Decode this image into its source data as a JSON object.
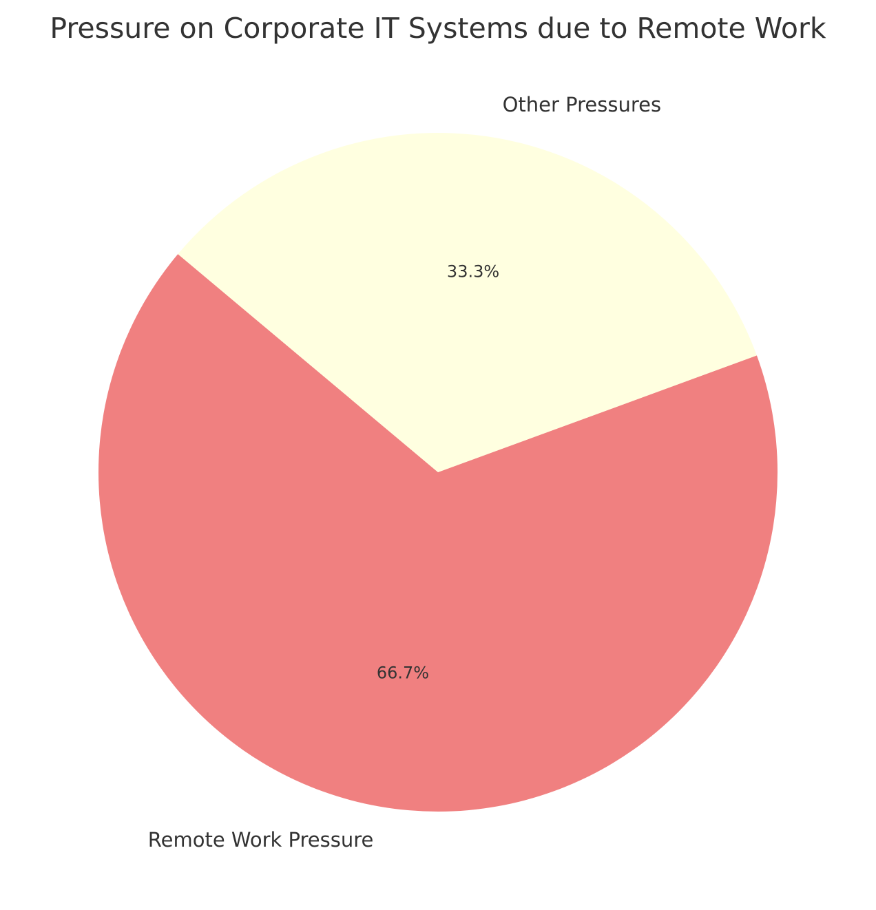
{
  "chart_data": {
    "type": "pie",
    "title": "Pressure on Corporate IT Systems due to Remote Work",
    "slices": [
      {
        "label": "Remote Work Pressure",
        "value": 66.7,
        "pct_label": "66.7%",
        "color": "#F08080"
      },
      {
        "label": "Other Pressures",
        "value": 33.3,
        "pct_label": "33.3%",
        "color": "#FFFFE0"
      }
    ],
    "start_angle_deg": 140,
    "direction": "counterclockwise",
    "legend": "none"
  }
}
